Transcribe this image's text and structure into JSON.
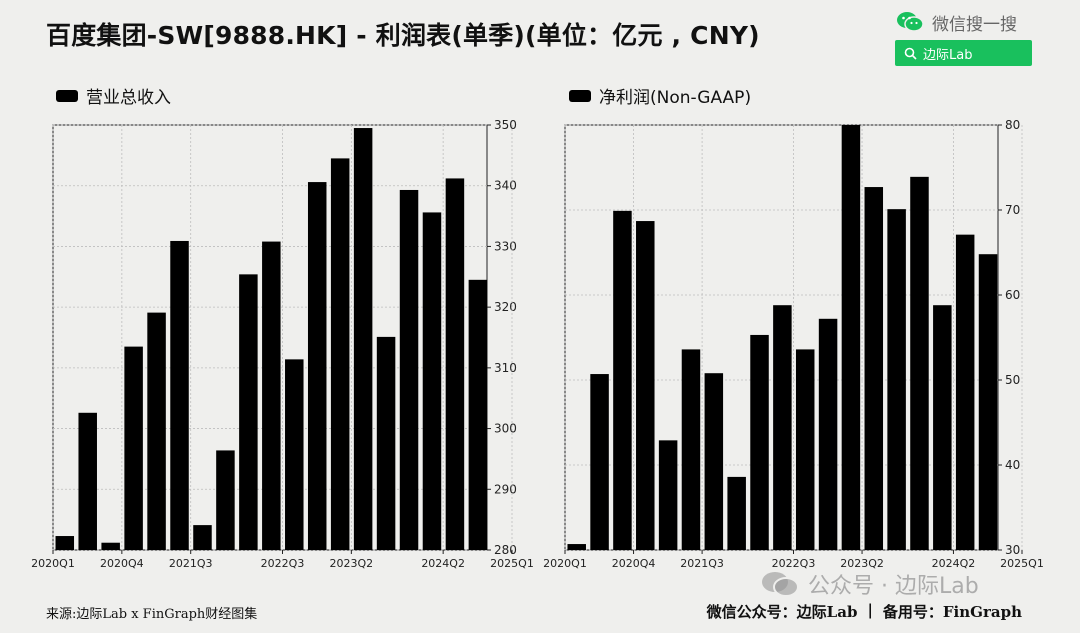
{
  "header": {
    "title": "百度集团-SW[9888.HK] - 利润表(单季)(单位：亿元 , CNY)"
  },
  "wechat": {
    "label": "微信搜一搜",
    "search_text": "边际Lab",
    "brand_color": "#19c05d"
  },
  "footer": {
    "source": "来源:边际Lab x FinGraph财经图集",
    "account": "微信公众号：边际Lab",
    "separator": "|",
    "backup": "备用号：FinGraph"
  },
  "watermark": {
    "text": "公众号 · 边际Lab"
  },
  "chart_data": [
    {
      "type": "bar",
      "legend": "营业总收入",
      "legend_position": "top-left",
      "color": "#000000",
      "ylim": [
        280,
        350
      ],
      "yticks": [
        280,
        290,
        300,
        310,
        320,
        330,
        340,
        350
      ],
      "xticks": [
        "2020Q1",
        "2020Q4",
        "2021Q3",
        "2022Q3",
        "2023Q2",
        "2024Q2",
        "2025Q1"
      ],
      "grid": true,
      "categories": [
        "2020Q1",
        "2020Q2",
        "2020Q3",
        "2020Q4",
        "2021Q1",
        "2021Q2",
        "2021Q3",
        "2021Q4",
        "2022Q1",
        "2022Q2",
        "2022Q3",
        "2022Q4",
        "2023Q1",
        "2023Q2",
        "2023Q3",
        "2023Q4",
        "2024Q1",
        "2024Q2",
        "2024Q3",
        "2024Q4",
        "2025Q1"
      ],
      "values": [
        282.3,
        302.6,
        281.2,
        313.5,
        319.1,
        330.9,
        284.1,
        296.4,
        325.4,
        330.8,
        311.4,
        340.6,
        344.5,
        349.5,
        315.1,
        339.3,
        335.6,
        341.2,
        324.5,
        null,
        null
      ]
    },
    {
      "type": "bar",
      "legend": "净利润(Non-GAAP)",
      "legend_position": "top-left",
      "color": "#000000",
      "ylim": [
        30,
        80
      ],
      "yticks": [
        30,
        40,
        50,
        60,
        70,
        80
      ],
      "xticks": [
        "2020Q1",
        "2020Q4",
        "2021Q3",
        "2022Q3",
        "2023Q2",
        "2024Q2",
        "2025Q1"
      ],
      "grid": true,
      "categories": [
        "2020Q1",
        "2020Q2",
        "2020Q3",
        "2020Q4",
        "2021Q1",
        "2021Q2",
        "2021Q3",
        "2021Q4",
        "2022Q1",
        "2022Q2",
        "2022Q3",
        "2022Q4",
        "2023Q1",
        "2023Q2",
        "2023Q3",
        "2023Q4",
        "2024Q1",
        "2024Q2",
        "2024Q3",
        "2024Q4",
        "2025Q1"
      ],
      "values": [
        30.7,
        50.7,
        69.9,
        68.7,
        42.9,
        53.6,
        50.8,
        38.6,
        55.3,
        58.8,
        53.6,
        57.2,
        80.0,
        72.7,
        70.1,
        73.9,
        58.8,
        67.1,
        64.8,
        null,
        null
      ]
    }
  ]
}
